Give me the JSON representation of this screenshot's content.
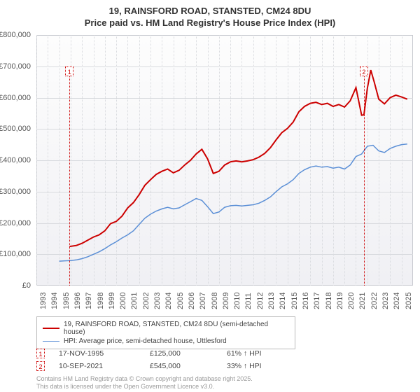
{
  "title": {
    "line1": "19, RAINSFORD ROAD, STANSTED, CM24 8DU",
    "line2": "Price paid vs. HM Land Registry's House Price Index (HPI)"
  },
  "chart": {
    "type": "line",
    "background_gradient_top": "#fdfdfd",
    "background_gradient_bottom": "#f0f0f4",
    "border_color": "#c8cad0",
    "grid_color": "#d8dade",
    "ylim": [
      0,
      800000
    ],
    "ytick_step": 100000,
    "yticks": [
      "£0",
      "£100,000",
      "£200,000",
      "£300,000",
      "£400,000",
      "£500,000",
      "£600,000",
      "£700,000",
      "£800,000"
    ],
    "xlim": [
      1993,
      2026
    ],
    "xticks": [
      "1993",
      "1994",
      "1995",
      "1996",
      "1997",
      "1998",
      "1999",
      "2000",
      "2001",
      "2002",
      "2003",
      "2004",
      "2005",
      "2006",
      "2007",
      "2008",
      "2009",
      "2010",
      "2011",
      "2012",
      "2013",
      "2014",
      "2015",
      "2016",
      "2017",
      "2018",
      "2019",
      "2020",
      "2021",
      "2022",
      "2023",
      "2024",
      "2025"
    ],
    "series": [
      {
        "id": "price_paid",
        "label": "19, RAINSFORD ROAD, STANSTED, CM24 8DU (semi-detached house)",
        "color": "#cc0000",
        "line_width": 2,
        "points": [
          [
            1995.9,
            125000
          ],
          [
            1996.5,
            128000
          ],
          [
            1997,
            135000
          ],
          [
            1997.5,
            145000
          ],
          [
            1998,
            155000
          ],
          [
            1998.5,
            162000
          ],
          [
            1999,
            175000
          ],
          [
            1999.5,
            198000
          ],
          [
            2000,
            205000
          ],
          [
            2000.5,
            222000
          ],
          [
            2001,
            248000
          ],
          [
            2001.5,
            265000
          ],
          [
            2002,
            290000
          ],
          [
            2002.5,
            320000
          ],
          [
            2003,
            338000
          ],
          [
            2003.5,
            355000
          ],
          [
            2004,
            365000
          ],
          [
            2004.5,
            372000
          ],
          [
            2005,
            360000
          ],
          [
            2005.5,
            368000
          ],
          [
            2006,
            385000
          ],
          [
            2006.5,
            400000
          ],
          [
            2007,
            420000
          ],
          [
            2007.5,
            435000
          ],
          [
            2008,
            405000
          ],
          [
            2008.5,
            358000
          ],
          [
            2009,
            365000
          ],
          [
            2009.5,
            385000
          ],
          [
            2010,
            395000
          ],
          [
            2010.5,
            398000
          ],
          [
            2011,
            395000
          ],
          [
            2011.5,
            398000
          ],
          [
            2012,
            402000
          ],
          [
            2012.5,
            410000
          ],
          [
            2013,
            422000
          ],
          [
            2013.5,
            440000
          ],
          [
            2014,
            465000
          ],
          [
            2014.5,
            488000
          ],
          [
            2015,
            502000
          ],
          [
            2015.5,
            522000
          ],
          [
            2016,
            555000
          ],
          [
            2016.5,
            572000
          ],
          [
            2017,
            582000
          ],
          [
            2017.5,
            585000
          ],
          [
            2018,
            578000
          ],
          [
            2018.5,
            582000
          ],
          [
            2019,
            572000
          ],
          [
            2019.5,
            578000
          ],
          [
            2020,
            570000
          ],
          [
            2020.5,
            590000
          ],
          [
            2021,
            632000
          ],
          [
            2021.5,
            544000
          ],
          [
            2021.7,
            545000
          ],
          [
            2022,
            630000
          ],
          [
            2022.3,
            688000
          ],
          [
            2022.6,
            650000
          ],
          [
            2023,
            595000
          ],
          [
            2023.5,
            580000
          ],
          [
            2024,
            600000
          ],
          [
            2024.5,
            608000
          ],
          [
            2025,
            602000
          ],
          [
            2025.5,
            595000
          ]
        ]
      },
      {
        "id": "hpi",
        "label": "HPI: Average price, semi-detached house, Uttlesford",
        "color": "#5b8fd6",
        "line_width": 1.5,
        "points": [
          [
            1995,
            78000
          ],
          [
            1995.5,
            79000
          ],
          [
            1996,
            80000
          ],
          [
            1996.5,
            82000
          ],
          [
            1997,
            86000
          ],
          [
            1997.5,
            92000
          ],
          [
            1998,
            100000
          ],
          [
            1998.5,
            108000
          ],
          [
            1999,
            118000
          ],
          [
            1999.5,
            130000
          ],
          [
            2000,
            140000
          ],
          [
            2000.5,
            152000
          ],
          [
            2001,
            162000
          ],
          [
            2001.5,
            175000
          ],
          [
            2002,
            195000
          ],
          [
            2002.5,
            215000
          ],
          [
            2003,
            228000
          ],
          [
            2003.5,
            238000
          ],
          [
            2004,
            245000
          ],
          [
            2004.5,
            250000
          ],
          [
            2005,
            245000
          ],
          [
            2005.5,
            248000
          ],
          [
            2006,
            258000
          ],
          [
            2006.5,
            268000
          ],
          [
            2007,
            278000
          ],
          [
            2007.5,
            272000
          ],
          [
            2008,
            252000
          ],
          [
            2008.5,
            230000
          ],
          [
            2009,
            235000
          ],
          [
            2009.5,
            250000
          ],
          [
            2010,
            255000
          ],
          [
            2010.5,
            256000
          ],
          [
            2011,
            254000
          ],
          [
            2011.5,
            256000
          ],
          [
            2012,
            258000
          ],
          [
            2012.5,
            263000
          ],
          [
            2013,
            272000
          ],
          [
            2013.5,
            283000
          ],
          [
            2014,
            300000
          ],
          [
            2014.5,
            315000
          ],
          [
            2015,
            325000
          ],
          [
            2015.5,
            338000
          ],
          [
            2016,
            358000
          ],
          [
            2016.5,
            370000
          ],
          [
            2017,
            378000
          ],
          [
            2017.5,
            382000
          ],
          [
            2018,
            378000
          ],
          [
            2018.5,
            380000
          ],
          [
            2019,
            375000
          ],
          [
            2019.5,
            378000
          ],
          [
            2020,
            372000
          ],
          [
            2020.5,
            385000
          ],
          [
            2021,
            412000
          ],
          [
            2021.5,
            420000
          ],
          [
            2022,
            445000
          ],
          [
            2022.5,
            448000
          ],
          [
            2023,
            430000
          ],
          [
            2023.5,
            425000
          ],
          [
            2024,
            438000
          ],
          [
            2024.5,
            445000
          ],
          [
            2025,
            450000
          ],
          [
            2025.5,
            452000
          ]
        ]
      }
    ],
    "markers": [
      {
        "id": "1",
        "x": 1995.9,
        "y_label_top": 700000
      },
      {
        "id": "2",
        "x": 2021.7,
        "y_label_top": 700000
      }
    ]
  },
  "legend": {
    "items": [
      {
        "series": "price_paid"
      },
      {
        "series": "hpi"
      }
    ]
  },
  "data_points": [
    {
      "marker": "1",
      "date": "17-NOV-1995",
      "price": "£125,000",
      "delta": "61% ↑ HPI"
    },
    {
      "marker": "2",
      "date": "10-SEP-2021",
      "price": "£545,000",
      "delta": "33% ↑ HPI"
    }
  ],
  "attribution": {
    "line1": "Contains HM Land Registry data © Crown copyright and database right 2025.",
    "line2": "This data is licensed under the Open Government Licence v3.0."
  }
}
